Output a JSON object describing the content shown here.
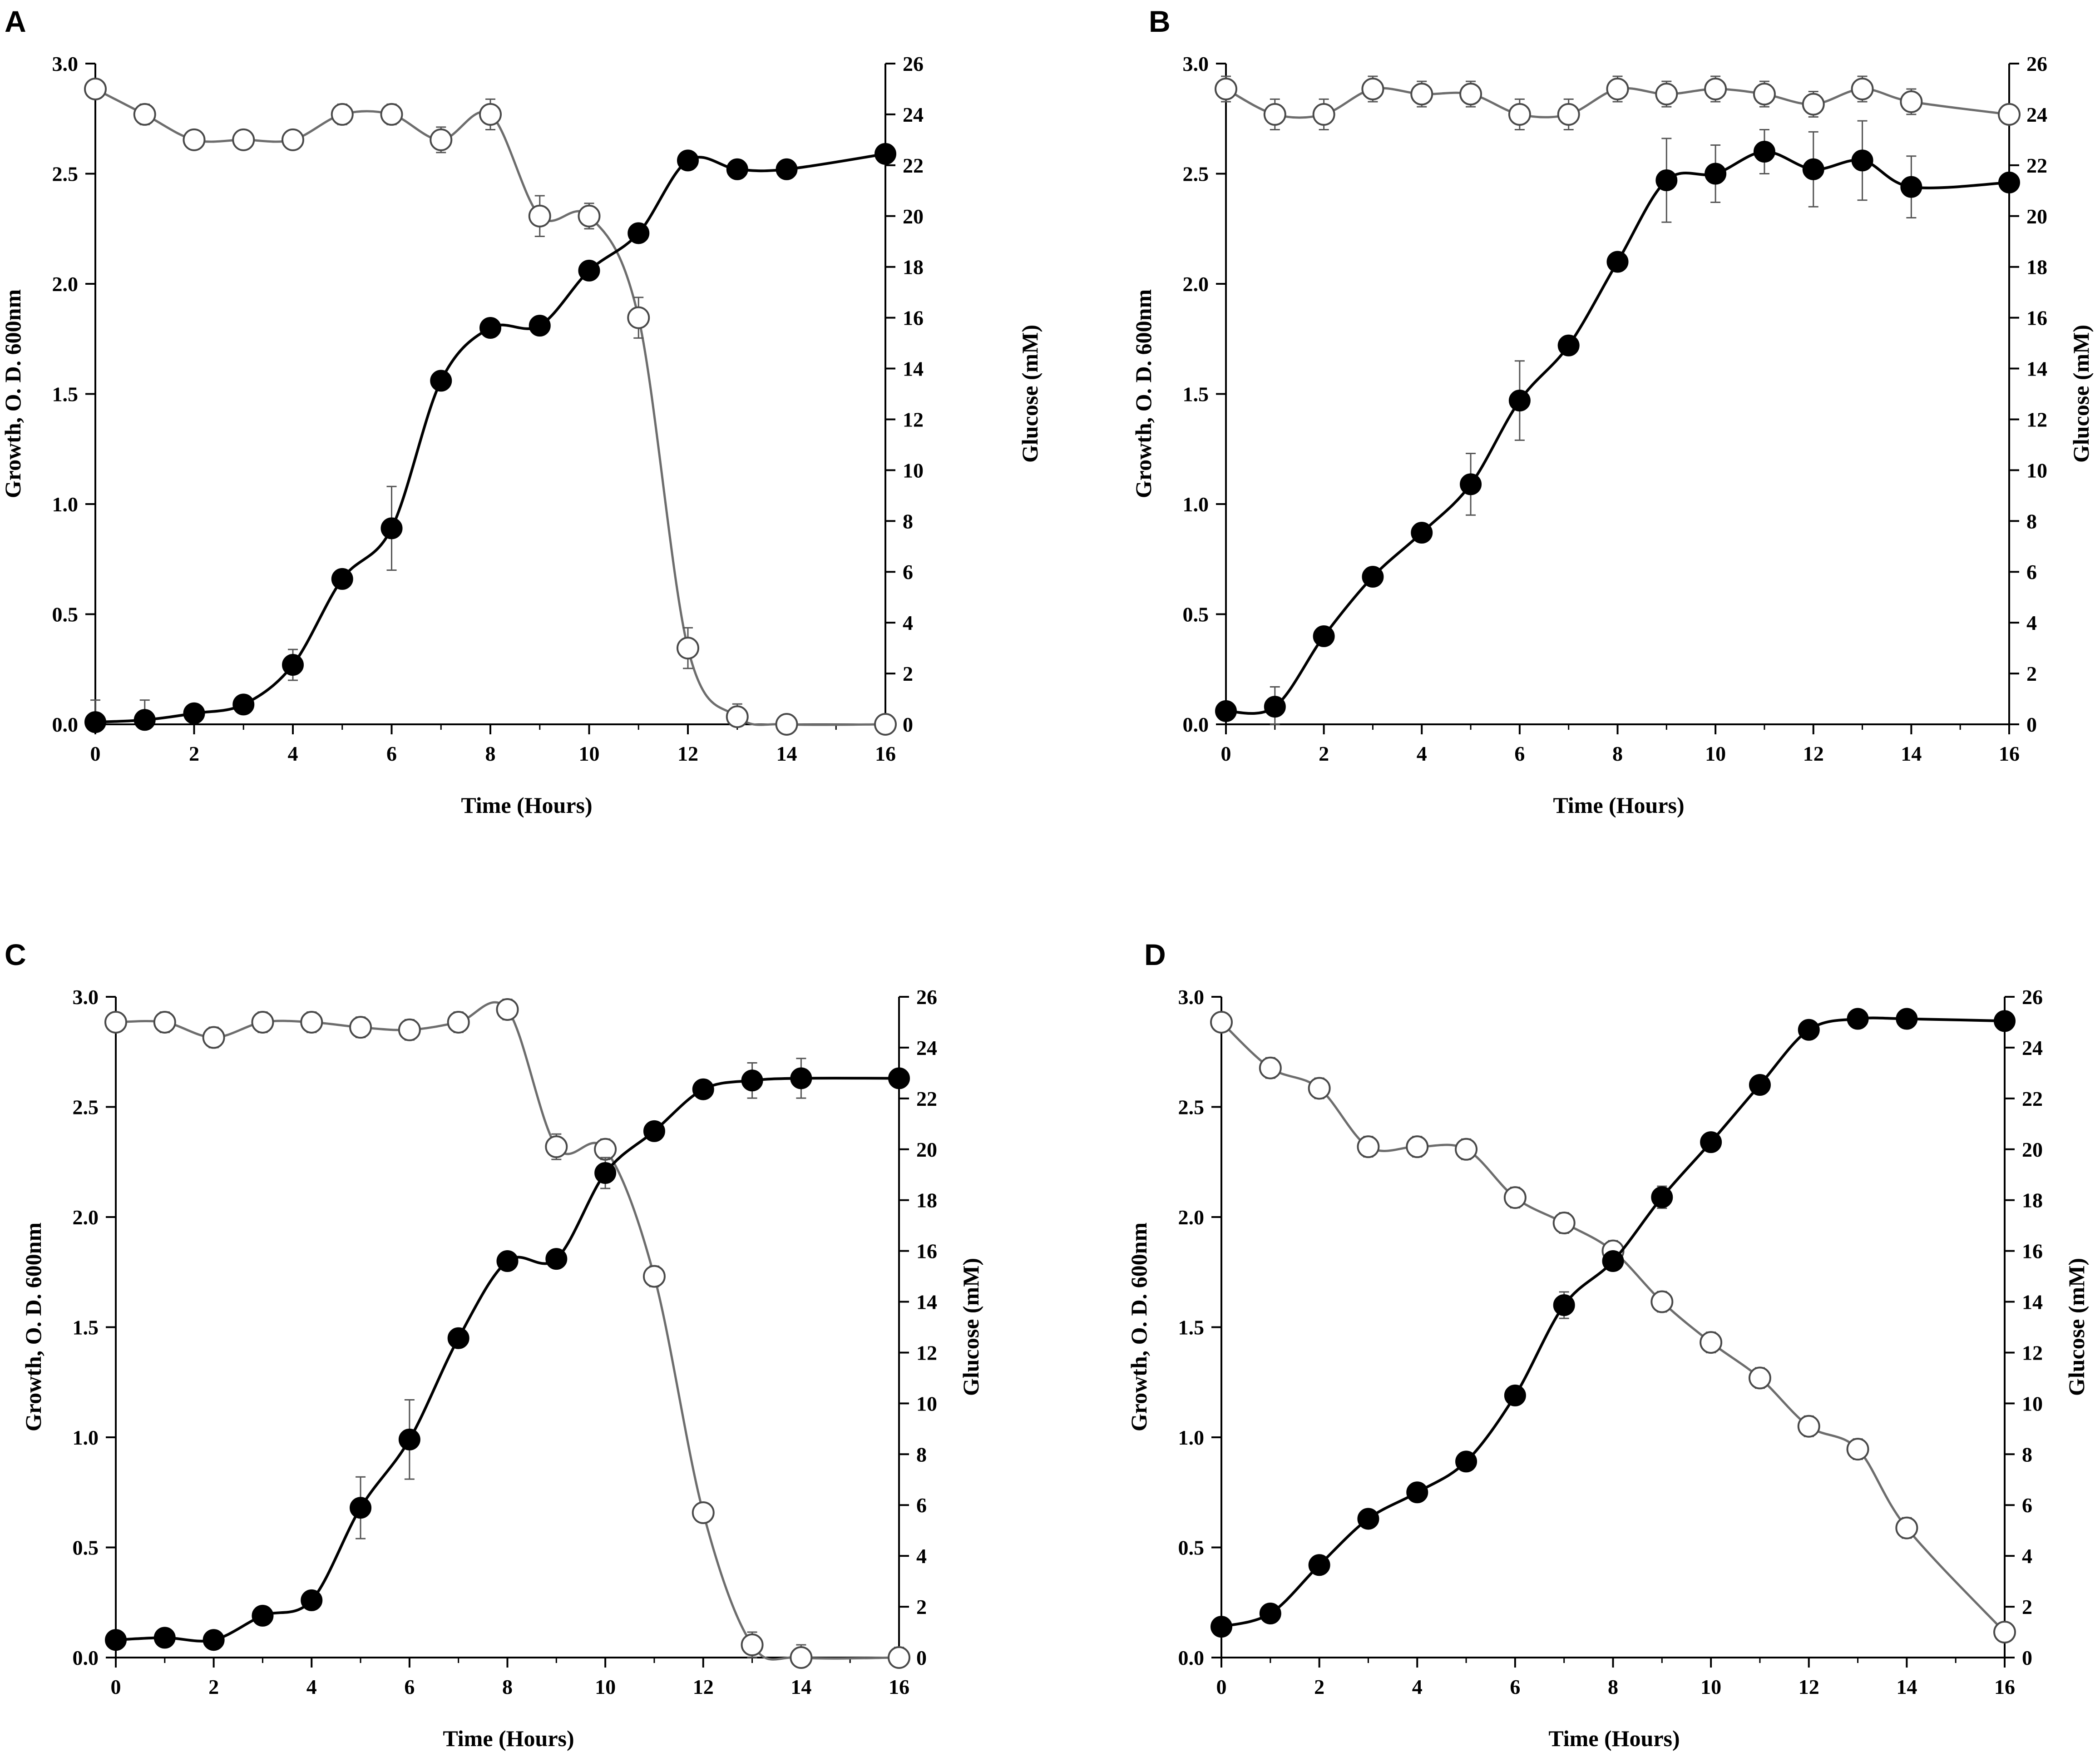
{
  "chart_data": [
    {
      "panel": "A",
      "type": "line",
      "xlabel": "Time (Hours)",
      "ylabel": "Growth, O. D. 600nm",
      "y2label": "Glucose (mM)",
      "xlim": [
        0,
        16
      ],
      "ylim": [
        0,
        3.0
      ],
      "y2lim": [
        0,
        26
      ],
      "x_ticks": [
        "0",
        "2",
        "4",
        "6",
        "8",
        "10",
        "12",
        "14",
        "16"
      ],
      "y_ticks": [
        "0.0",
        "0.5",
        "1.0",
        "1.5",
        "2.0",
        "2.5",
        "3.0"
      ],
      "y2_ticks": [
        "0",
        "2",
        "4",
        "6",
        "8",
        "10",
        "12",
        "14",
        "16",
        "18",
        "20",
        "22",
        "24",
        "26"
      ],
      "series": [
        {
          "name": "Growth (O.D. 600nm)",
          "axis": "left",
          "marker": "filled-circle",
          "x": [
            0,
            1,
            2,
            3,
            4,
            5,
            6,
            7,
            8,
            9,
            10,
            11,
            12,
            13,
            14,
            16
          ],
          "values": [
            0.01,
            0.02,
            0.05,
            0.09,
            0.27,
            0.66,
            0.89,
            1.56,
            1.8,
            1.81,
            2.06,
            2.23,
            2.56,
            2.52,
            2.52,
            2.59
          ],
          "errors": [
            0.1,
            0.09,
            0.02,
            0.02,
            0.07,
            0.02,
            0.19,
            0.03,
            0.03,
            0.03,
            0.03,
            0.03,
            0.02,
            0.02,
            0.02,
            0.02
          ]
        },
        {
          "name": "Glucose (mM)",
          "axis": "right",
          "marker": "open-circle",
          "x": [
            0,
            1,
            2,
            3,
            4,
            5,
            6,
            7,
            8,
            9,
            10,
            11,
            12,
            13,
            14,
            16
          ],
          "values": [
            25.0,
            24.0,
            23.0,
            23.0,
            23.0,
            24.0,
            24.0,
            23.0,
            24.0,
            20.0,
            20.0,
            16.0,
            3.0,
            0.3,
            0.0,
            0.0
          ],
          "errors": [
            0.3,
            0.4,
            0.2,
            0.2,
            0.2,
            0.4,
            0.4,
            0.5,
            0.6,
            0.8,
            0.5,
            0.8,
            0.8,
            0.5,
            0.1,
            0.1
          ]
        }
      ]
    },
    {
      "panel": "B",
      "type": "line",
      "xlabel": "Time (Hours)",
      "ylabel": "Growth, O. D. 600nm",
      "y2label": "Glucose (mM)",
      "xlim": [
        0,
        16
      ],
      "ylim": [
        0,
        3.0
      ],
      "y2lim": [
        0,
        26
      ],
      "x_ticks": [
        "0",
        "2",
        "4",
        "6",
        "8",
        "10",
        "12",
        "14",
        "16"
      ],
      "y_ticks": [
        "0.0",
        "0.5",
        "1.0",
        "1.5",
        "2.0",
        "2.5",
        "3.0"
      ],
      "y2_ticks": [
        "0",
        "2",
        "4",
        "6",
        "8",
        "10",
        "12",
        "14",
        "16",
        "18",
        "20",
        "22",
        "24",
        "26"
      ],
      "series": [
        {
          "name": "Growth (O.D. 600nm)",
          "axis": "left",
          "marker": "filled-circle",
          "x": [
            0,
            1,
            2,
            3,
            4,
            5,
            6,
            7,
            8,
            9,
            10,
            11,
            12,
            13,
            14,
            16
          ],
          "values": [
            0.06,
            0.08,
            0.4,
            0.67,
            0.87,
            1.09,
            1.47,
            1.72,
            2.1,
            2.47,
            2.5,
            2.6,
            2.52,
            2.56,
            2.44,
            2.46
          ],
          "errors": [
            0.03,
            0.09,
            0.02,
            0.02,
            0.02,
            0.14,
            0.18,
            0.02,
            0.02,
            0.19,
            0.13,
            0.1,
            0.17,
            0.18,
            0.14,
            0.02
          ]
        },
        {
          "name": "Glucose (mM)",
          "axis": "right",
          "marker": "open-circle",
          "x": [
            0,
            1,
            2,
            3,
            4,
            5,
            6,
            7,
            8,
            9,
            10,
            11,
            12,
            13,
            14,
            16
          ],
          "values": [
            25.0,
            24.0,
            24.0,
            25.0,
            24.8,
            24.8,
            24.0,
            24.0,
            25.0,
            24.8,
            25.0,
            24.8,
            24.4,
            25.0,
            24.5,
            24.0
          ],
          "errors": [
            0.5,
            0.6,
            0.6,
            0.5,
            0.5,
            0.5,
            0.6,
            0.6,
            0.5,
            0.5,
            0.5,
            0.5,
            0.5,
            0.5,
            0.5,
            0.2
          ]
        }
      ]
    },
    {
      "panel": "C",
      "type": "line",
      "xlabel": "Time (Hours)",
      "ylabel": "Growth, O. D. 600nm",
      "y2label": "Glucose (mM)",
      "xlim": [
        0,
        16
      ],
      "ylim": [
        0,
        3.0
      ],
      "y2lim": [
        0,
        26
      ],
      "x_ticks": [
        "0",
        "2",
        "4",
        "6",
        "8",
        "10",
        "12",
        "14",
        "16"
      ],
      "y_ticks": [
        "0.0",
        "0.5",
        "1.0",
        "1.5",
        "2.0",
        "2.5",
        "3.0"
      ],
      "y2_ticks": [
        "0",
        "2",
        "4",
        "6",
        "8",
        "10",
        "12",
        "14",
        "16",
        "18",
        "20",
        "22",
        "24",
        "26"
      ],
      "series": [
        {
          "name": "Growth (O.D. 600nm)",
          "axis": "left",
          "marker": "filled-circle",
          "x": [
            0,
            1,
            2,
            3,
            4,
            5,
            6,
            7,
            8,
            9,
            10,
            11,
            12,
            13,
            14,
            16
          ],
          "values": [
            0.08,
            0.09,
            0.08,
            0.19,
            0.26,
            0.68,
            0.99,
            1.45,
            1.8,
            1.81,
            2.2,
            2.39,
            2.58,
            2.62,
            2.63,
            2.63
          ],
          "errors": [
            0.02,
            0.02,
            0.02,
            0.02,
            0.02,
            0.14,
            0.18,
            0.02,
            0.02,
            0.02,
            0.07,
            0.02,
            0.02,
            0.08,
            0.09,
            0.02
          ]
        },
        {
          "name": "Glucose (mM)",
          "axis": "right",
          "marker": "open-circle",
          "x": [
            0,
            1,
            2,
            3,
            4,
            5,
            6,
            7,
            8,
            9,
            10,
            11,
            12,
            13,
            14,
            16
          ],
          "values": [
            25.0,
            25.0,
            24.4,
            25.0,
            25.0,
            24.8,
            24.7,
            25.0,
            25.5,
            20.1,
            20.0,
            15.0,
            5.7,
            0.5,
            0.0,
            0.0
          ],
          "errors": [
            0.3,
            0.4,
            0.4,
            0.4,
            0.4,
            0.4,
            0.4,
            0.4,
            0.4,
            0.5,
            0.4,
            0.4,
            0.2,
            0.5,
            0.5,
            0.4
          ]
        }
      ]
    },
    {
      "panel": "D",
      "type": "line",
      "xlabel": "Time (Hours)",
      "ylabel": "Growth, O. D. 600nm",
      "y2label": "Glucose (mM)",
      "xlim": [
        0,
        16
      ],
      "ylim": [
        0,
        3.0
      ],
      "y2lim": [
        0,
        26
      ],
      "x_ticks": [
        "0",
        "2",
        "4",
        "6",
        "8",
        "10",
        "12",
        "14",
        "16"
      ],
      "y_ticks": [
        "0.0",
        "0.5",
        "1.0",
        "1.5",
        "2.0",
        "2.5",
        "3.0"
      ],
      "y2_ticks": [
        "0",
        "2",
        "4",
        "6",
        "8",
        "10",
        "12",
        "14",
        "16",
        "18",
        "20",
        "22",
        "24",
        "26"
      ],
      "series": [
        {
          "name": "Growth (O.D. 600nm)",
          "axis": "left",
          "marker": "filled-circle",
          "x": [
            0,
            1,
            2,
            3,
            4,
            5,
            6,
            7,
            8,
            9,
            10,
            11,
            12,
            13,
            14,
            16
          ],
          "values": [
            0.14,
            0.2,
            0.42,
            0.63,
            0.75,
            0.89,
            1.19,
            1.6,
            1.8,
            2.09,
            2.34,
            2.6,
            2.85,
            2.9,
            2.9,
            2.89
          ],
          "errors": [
            0.02,
            0.02,
            0.02,
            0.02,
            0.02,
            0.02,
            0.02,
            0.06,
            0.02,
            0.05,
            0.02,
            0.02,
            0.02,
            0.02,
            0.02,
            0.02
          ]
        },
        {
          "name": "Glucose (mM)",
          "axis": "right",
          "marker": "open-circle",
          "x": [
            0,
            1,
            2,
            3,
            4,
            5,
            6,
            7,
            8,
            9,
            10,
            11,
            12,
            13,
            14,
            16
          ],
          "values": [
            25.0,
            23.2,
            22.4,
            20.1,
            20.1,
            20.0,
            18.1,
            17.1,
            16.0,
            14.0,
            12.4,
            11.0,
            9.1,
            8.2,
            5.1,
            1.0
          ],
          "errors": [
            0.3,
            0.4,
            0.4,
            0.4,
            0.4,
            0.4,
            0.4,
            0.4,
            0.4,
            0.4,
            0.4,
            0.4,
            0.4,
            0.4,
            0.4,
            0.3
          ]
        }
      ]
    }
  ]
}
